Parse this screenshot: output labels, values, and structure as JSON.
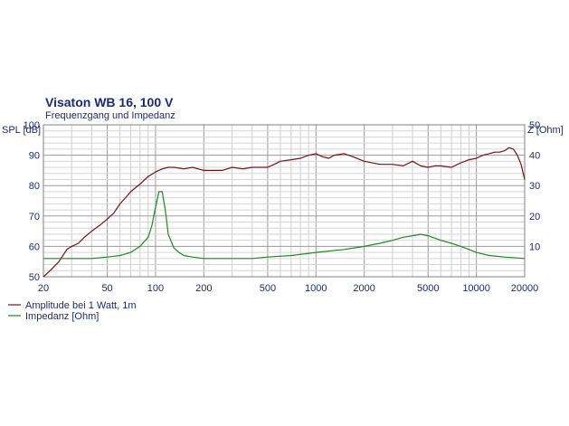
{
  "chart_data": {
    "type": "line",
    "title": "Visaton WB 16, 100 V",
    "subtitle": "Frequenzgang und Impedanz",
    "ylabel_left": "SPL [dB]",
    "ylabel_right": "Z [Ohm]",
    "xscale": "log",
    "xlim": [
      20,
      20000
    ],
    "ylim_left": [
      50,
      100
    ],
    "ylim_right": [
      0,
      50
    ],
    "x_ticks": [
      20,
      50,
      100,
      200,
      500,
      1000,
      2000,
      5000,
      10000,
      20000
    ],
    "x_tick_labels": [
      "20",
      "50",
      "100",
      "200",
      "500",
      "1000",
      "2000",
      "5000",
      "10000",
      "20000"
    ],
    "y_left_ticks": [
      50,
      60,
      70,
      80,
      90,
      100
    ],
    "y_left_tick_labels": [
      "50",
      "60",
      "70",
      "80",
      "90",
      "100"
    ],
    "y_right_ticks": [
      10,
      20,
      30,
      40,
      50
    ],
    "y_right_tick_labels": [
      "10",
      "20",
      "30",
      "40",
      "50"
    ],
    "grid": true,
    "legend_position": "bottom-left",
    "series": [
      {
        "name": "Amplitude bei 1 Watt, 1m",
        "axis": "left",
        "color": "#7a1010",
        "x": [
          20,
          22,
          25,
          28,
          30,
          33,
          36,
          40,
          45,
          50,
          55,
          60,
          65,
          70,
          80,
          90,
          100,
          110,
          120,
          130,
          150,
          170,
          200,
          230,
          260,
          300,
          350,
          400,
          450,
          500,
          550,
          600,
          700,
          800,
          900,
          1000,
          1100,
          1200,
          1300,
          1500,
          1700,
          2000,
          2500,
          3000,
          3500,
          4000,
          4500,
          5000,
          5500,
          6000,
          7000,
          8000,
          9000,
          10000,
          11000,
          12000,
          13000,
          14000,
          15000,
          16000,
          17000,
          18000,
          19000,
          20000
        ],
        "y": [
          50,
          52,
          55,
          59,
          60,
          61,
          63,
          65,
          67,
          69,
          71,
          74,
          76,
          78,
          80.5,
          83,
          84.5,
          85.5,
          86,
          86,
          85.5,
          86,
          85,
          85,
          85,
          86,
          85.5,
          86,
          86,
          86,
          87,
          88,
          88.5,
          89,
          90,
          90.5,
          89.5,
          89,
          90,
          90.5,
          89.5,
          88,
          87,
          87,
          86.5,
          88,
          86.5,
          86,
          86.5,
          86.5,
          86,
          87.5,
          88.5,
          89,
          90,
          90.5,
          91,
          91,
          91.5,
          92.5,
          92,
          90,
          87,
          82
        ]
      },
      {
        "name": "Impedanz [Ohm]",
        "axis": "right",
        "color": "#1f8a1f",
        "x": [
          20,
          25,
          30,
          40,
          50,
          60,
          70,
          80,
          90,
          95,
          100,
          105,
          110,
          115,
          120,
          130,
          140,
          150,
          170,
          200,
          300,
          400,
          500,
          700,
          1000,
          1500,
          2000,
          2500,
          3000,
          3500,
          4000,
          4500,
          5000,
          6000,
          7000,
          8000,
          9000,
          10000,
          12000,
          15000,
          20000
        ],
        "y": [
          6,
          6,
          6,
          6,
          6.5,
          7,
          8,
          10,
          13,
          17,
          23,
          28,
          28,
          22,
          14,
          9.5,
          8,
          7,
          6.5,
          6,
          6,
          6,
          6.5,
          7,
          8,
          9,
          10,
          11,
          12,
          13,
          13.5,
          14,
          13.5,
          12,
          11,
          10,
          9,
          8,
          7,
          6.5,
          6
        ]
      }
    ]
  }
}
